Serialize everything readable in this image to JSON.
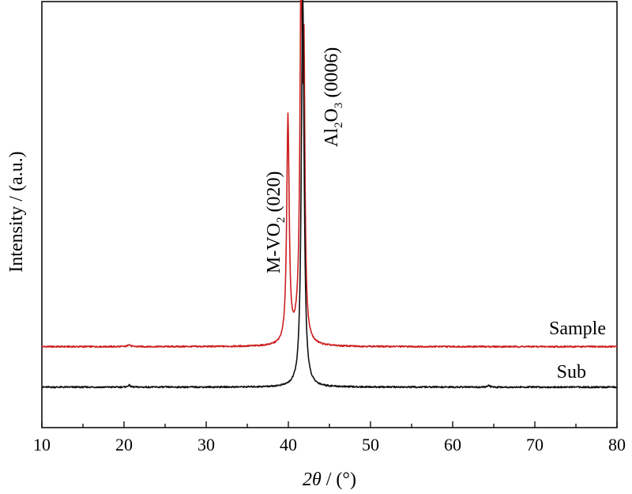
{
  "chart_data": {
    "type": "line",
    "xlabel": {
      "var": "2θ",
      "unit": " / (°)"
    },
    "ylabel": "Intensity / (a.u.)",
    "xlim": [
      10,
      80
    ],
    "xticks": [
      10,
      20,
      30,
      40,
      50,
      60,
      70,
      80
    ],
    "ylim": [
      0,
      100
    ],
    "grid": false,
    "series": [
      {
        "name": "Sample",
        "color": "#cc1f1f",
        "baseline": 19,
        "peaks": [
          {
            "x": 20.6,
            "height": 0.6,
            "width": 0.15
          },
          {
            "x": 39.95,
            "height": 53,
            "width": 0.18
          },
          {
            "x": 41.55,
            "height": 81.5,
            "width": 0.16
          },
          {
            "x": 41.9,
            "height": 60,
            "width": 0.14
          },
          {
            "x": 41.2,
            "height": 3,
            "width": 0.6
          }
        ]
      },
      {
        "name": "Sub",
        "color": "#111111",
        "baseline": 9.5,
        "peaks": [
          {
            "x": 20.6,
            "height": 0.5,
            "width": 0.15
          },
          {
            "x": 41.75,
            "height": 93,
            "width": 0.2
          },
          {
            "x": 64.4,
            "height": 0.4,
            "width": 0.15
          }
        ]
      }
    ],
    "annotations": [
      {
        "id": "vo2",
        "x": 40.0,
        "base": "M-VO",
        "sub": "2",
        "tail": " (020)"
      },
      {
        "id": "al2o3",
        "x": 41.9,
        "parts": [
          "Al",
          "2",
          "O",
          "3",
          " (0006)"
        ]
      }
    ]
  }
}
